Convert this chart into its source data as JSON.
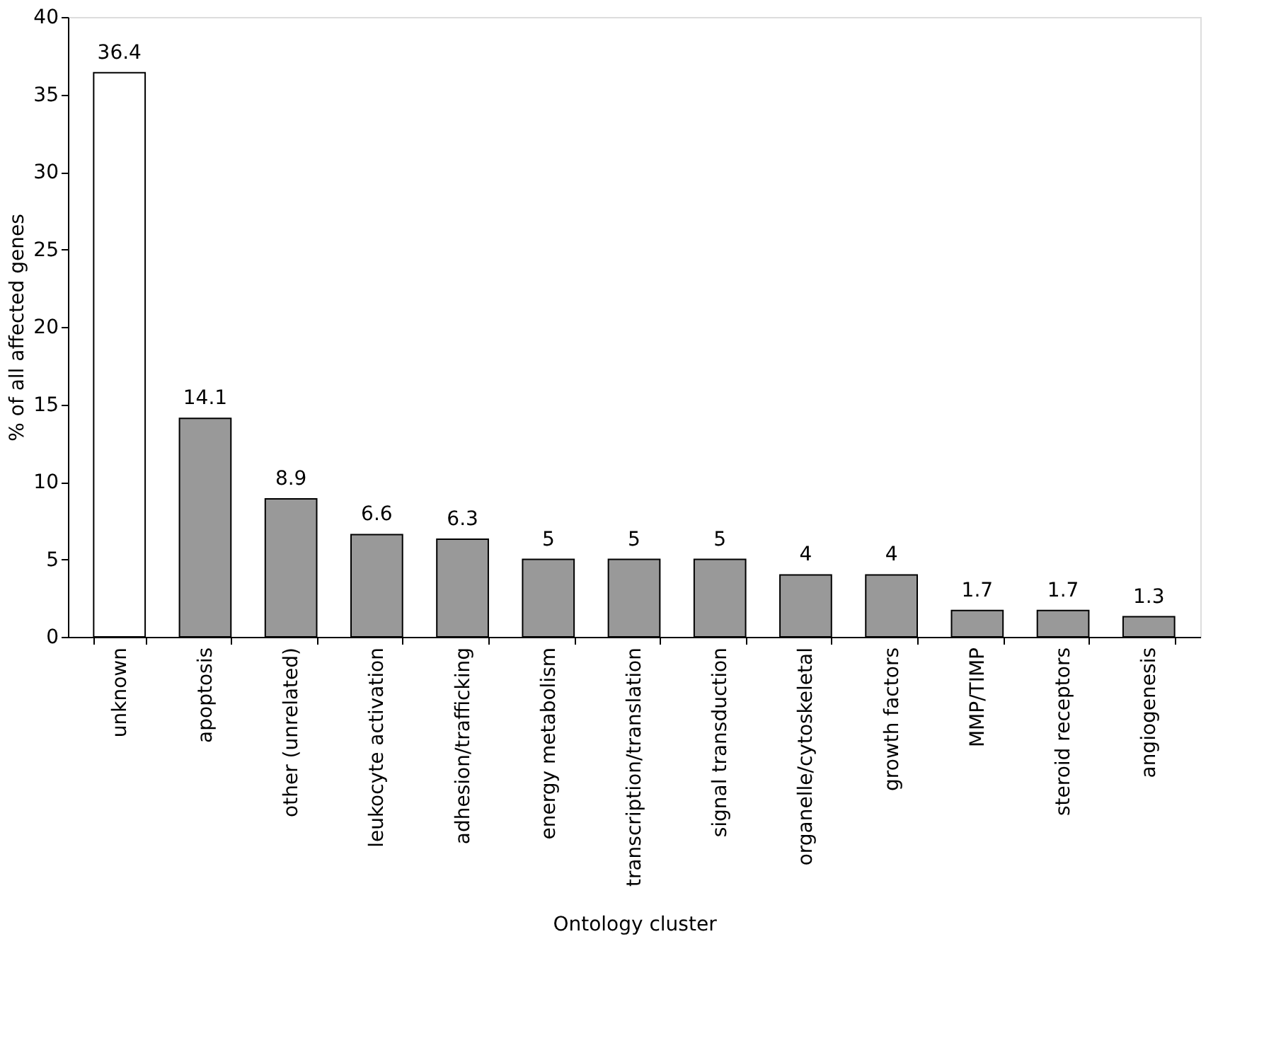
{
  "chart_data": {
    "type": "bar",
    "xlabel": "Ontology cluster",
    "ylabel": "% of all affected genes",
    "categories": [
      "unknown",
      "apoptosis",
      "other (unrelated)",
      "leukocyte activation",
      "adhesion/trafficking",
      "energy metabolism",
      "transcription/translation",
      "signal transduction",
      "organelle/cytoskeletal",
      "growth factors",
      "MMP/TIMP",
      "steroid receptors",
      "angiogenesis"
    ],
    "values": [
      36.4,
      14.1,
      8.9,
      6.6,
      6.3,
      5,
      5,
      5,
      4,
      4,
      1.7,
      1.7,
      1.3
    ],
    "colors": [
      "#ffffff",
      "#999999",
      "#999999",
      "#999999",
      "#999999",
      "#999999",
      "#999999",
      "#999999",
      "#999999",
      "#999999",
      "#999999",
      "#999999",
      "#999999"
    ],
    "ylim": [
      0,
      40
    ],
    "yticks": [
      0,
      5,
      10,
      15,
      20,
      25,
      30,
      35,
      40
    ],
    "data_labels": true,
    "grid": false
  }
}
